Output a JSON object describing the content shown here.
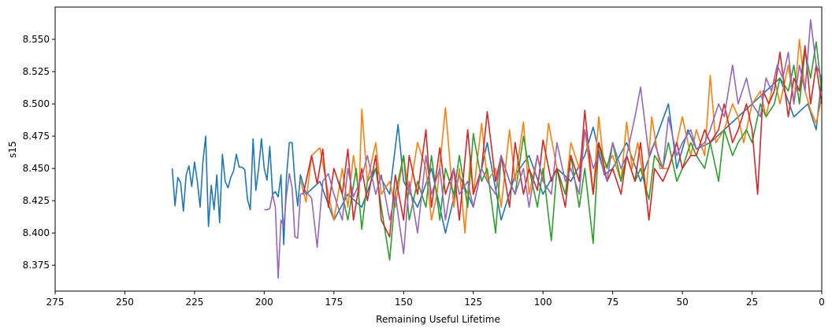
{
  "chart_data": {
    "type": "line",
    "title": "",
    "xlabel": "Remaining Useful Lifetime",
    "ylabel": "s15",
    "xlim": [
      275,
      0
    ],
    "ylim": [
      8.355,
      8.575
    ],
    "x_inverted": true,
    "grid": false,
    "legend": "none",
    "xticks": [
      275,
      250,
      225,
      200,
      175,
      150,
      125,
      100,
      75,
      50,
      25,
      0
    ],
    "xtick_labels": [
      "275",
      "250",
      "225",
      "200",
      "175",
      "150",
      "125",
      "100",
      "75",
      "50",
      "25",
      "0"
    ],
    "yticks": [
      8.375,
      8.4,
      8.425,
      8.45,
      8.475,
      8.5,
      8.525,
      8.55
    ],
    "ytick_labels": [
      "8.375",
      "8.400",
      "8.425",
      "8.450",
      "8.475",
      "8.500",
      "8.525",
      "8.550"
    ],
    "series": [
      {
        "color": "#1f77b4",
        "x": [
          233,
          232,
          231,
          230,
          229,
          228,
          227,
          226,
          225,
          224,
          223,
          222,
          221,
          220,
          219,
          218,
          217,
          216,
          215,
          214,
          213,
          212,
          211,
          210,
          209,
          208,
          207,
          206,
          205,
          204,
          203,
          202,
          201,
          200,
          199,
          198,
          197,
          196,
          195,
          194,
          193,
          192,
          191,
          190,
          189,
          188,
          187,
          185,
          180,
          175,
          170,
          165,
          160,
          155,
          152,
          150,
          145,
          140,
          135,
          130,
          125,
          120,
          115,
          110,
          105,
          100,
          95,
          90,
          85,
          82,
          78,
          75,
          70,
          65,
          60,
          55,
          52,
          48,
          45,
          40,
          35,
          30,
          25,
          20,
          15,
          10,
          5,
          2,
          0
        ],
        "y": [
          8.45,
          8.421,
          8.443,
          8.439,
          8.417,
          8.445,
          8.452,
          8.436,
          8.455,
          8.44,
          8.42,
          8.455,
          8.475,
          8.405,
          8.437,
          8.418,
          8.445,
          8.408,
          8.461,
          8.44,
          8.435,
          8.443,
          8.448,
          8.461,
          8.451,
          8.451,
          8.449,
          8.426,
          8.418,
          8.473,
          8.433,
          8.45,
          8.473,
          8.45,
          8.441,
          8.467,
          8.43,
          8.432,
          8.428,
          8.445,
          8.391,
          8.444,
          8.47,
          8.47,
          8.441,
          8.421,
          8.445,
          8.43,
          8.44,
          8.41,
          8.43,
          8.42,
          8.45,
          8.43,
          8.484,
          8.44,
          8.42,
          8.45,
          8.4,
          8.445,
          8.42,
          8.47,
          8.41,
          8.445,
          8.46,
          8.43,
          8.45,
          8.44,
          8.46,
          8.482,
          8.445,
          8.45,
          8.47,
          8.44,
          8.47,
          8.5,
          8.45,
          8.48,
          8.465,
          8.47,
          8.48,
          8.49,
          8.5,
          8.51,
          8.52,
          8.49,
          8.5,
          8.48,
          8.52
        ]
      },
      {
        "color": "#ff7f0e",
        "x": [
          187,
          185,
          183,
          180,
          177,
          175,
          172,
          170,
          168,
          166,
          165,
          163,
          160,
          158,
          155,
          153,
          150,
          148,
          145,
          142,
          140,
          138,
          135,
          132,
          130,
          128,
          126,
          125,
          122,
          120,
          117,
          115,
          112,
          110,
          107,
          105,
          102,
          100,
          98,
          95,
          92,
          90,
          87,
          85,
          82,
          80,
          78,
          75,
          72,
          70,
          68,
          66,
          63,
          61,
          58,
          55,
          52,
          50,
          47,
          45,
          42,
          40,
          38,
          35,
          32,
          30,
          28,
          25,
          22,
          20,
          17,
          15,
          12,
          10,
          8,
          6,
          4,
          2,
          0
        ],
        "y": [
          8.441,
          8.424,
          8.46,
          8.466,
          8.43,
          8.41,
          8.45,
          8.42,
          8.46,
          8.43,
          8.496,
          8.44,
          8.47,
          8.43,
          8.44,
          8.42,
          8.46,
          8.43,
          8.47,
          8.45,
          8.41,
          8.43,
          8.497,
          8.42,
          8.45,
          8.4,
          8.46,
          8.43,
          8.485,
          8.44,
          8.45,
          8.42,
          8.48,
          8.44,
          8.486,
          8.43,
          8.46,
          8.44,
          8.485,
          8.45,
          8.43,
          8.47,
          8.45,
          8.48,
          8.43,
          8.49,
          8.45,
          8.46,
          8.44,
          8.486,
          8.45,
          8.47,
          8.43,
          8.49,
          8.45,
          8.45,
          8.47,
          8.49,
          8.46,
          8.48,
          8.46,
          8.522,
          8.47,
          8.48,
          8.5,
          8.49,
          8.47,
          8.5,
          8.51,
          8.49,
          8.52,
          8.5,
          8.53,
          8.5,
          8.55,
          8.51,
          8.495,
          8.485,
          8.505
        ]
      },
      {
        "color": "#2ca02c",
        "x": [
          173,
          170,
          167,
          165,
          163,
          160,
          158,
          155,
          153,
          150,
          148,
          145,
          142,
          140,
          137,
          135,
          132,
          130,
          127,
          125,
          122,
          120,
          117,
          115,
          112,
          110,
          107,
          105,
          102,
          100,
          97,
          95,
          92,
          90,
          87,
          85,
          82,
          80,
          77,
          75,
          72,
          70,
          67,
          65,
          62,
          60,
          57,
          55,
          52,
          50,
          47,
          45,
          42,
          40,
          37,
          35,
          32,
          30,
          27,
          25,
          22,
          20,
          17,
          15,
          12,
          10,
          8,
          6,
          4,
          2,
          0
        ],
        "y": [
          8.44,
          8.41,
          8.45,
          8.403,
          8.44,
          8.45,
          8.42,
          8.379,
          8.43,
          8.46,
          8.41,
          8.44,
          8.42,
          8.46,
          8.41,
          8.45,
          8.43,
          8.46,
          8.42,
          8.477,
          8.44,
          8.45,
          8.4,
          8.46,
          8.44,
          8.43,
          8.475,
          8.45,
          8.42,
          8.45,
          8.394,
          8.45,
          8.43,
          8.46,
          8.42,
          8.45,
          8.392,
          8.47,
          8.45,
          8.47,
          8.44,
          8.46,
          8.44,
          8.45,
          8.426,
          8.46,
          8.45,
          8.47,
          8.44,
          8.45,
          8.47,
          8.46,
          8.45,
          8.47,
          8.44,
          8.48,
          8.46,
          8.47,
          8.48,
          8.47,
          8.5,
          8.49,
          8.5,
          8.52,
          8.51,
          8.53,
          8.5,
          8.541,
          8.52,
          8.548,
          8.51
        ]
      },
      {
        "color": "#d62728",
        "x": [
          186,
          183,
          181,
          179,
          177,
          175,
          172,
          170,
          168,
          165,
          163,
          160,
          158,
          155,
          153,
          150,
          148,
          145,
          142,
          140,
          137,
          135,
          132,
          130,
          127,
          125,
          122,
          120,
          117,
          115,
          112,
          110,
          107,
          105,
          102,
          100,
          97,
          95,
          92,
          90,
          87,
          85,
          82,
          80,
          77,
          75,
          72,
          70,
          67,
          65,
          62,
          60,
          57,
          55,
          52,
          50,
          47,
          45,
          42,
          40,
          37,
          35,
          32,
          30,
          27,
          25,
          23,
          21,
          19,
          17,
          15,
          12,
          10,
          8,
          6,
          4,
          2,
          0
        ],
        "y": [
          8.43,
          8.46,
          8.438,
          8.465,
          8.42,
          8.45,
          8.43,
          8.465,
          8.41,
          8.45,
          8.425,
          8.46,
          8.41,
          8.397,
          8.445,
          8.41,
          8.46,
          8.43,
          8.48,
          8.42,
          8.466,
          8.43,
          8.45,
          8.41,
          8.48,
          8.43,
          8.45,
          8.494,
          8.44,
          8.46,
          8.42,
          8.47,
          8.43,
          8.45,
          8.433,
          8.472,
          8.44,
          8.45,
          8.42,
          8.46,
          8.44,
          8.495,
          8.43,
          8.47,
          8.44,
          8.45,
          8.43,
          8.46,
          8.44,
          8.47,
          8.41,
          8.45,
          8.44,
          8.45,
          8.47,
          8.45,
          8.46,
          8.46,
          8.48,
          8.47,
          8.48,
          8.5,
          8.47,
          8.48,
          8.5,
          8.48,
          8.43,
          8.51,
          8.5,
          8.51,
          8.54,
          8.49,
          8.52,
          8.51,
          8.545,
          8.5,
          8.53,
          8.5
        ]
      },
      {
        "color": "#9467bd",
        "x": [
          200,
          199,
          198,
          197,
          196,
          195,
          194,
          193,
          192,
          191,
          190,
          189,
          188,
          187,
          185,
          183,
          181,
          179,
          177,
          175,
          172,
          170,
          168,
          165,
          163,
          160,
          158,
          155,
          153,
          150,
          148,
          145,
          142,
          140,
          137,
          135,
          132,
          130,
          127,
          125,
          122,
          120,
          117,
          115,
          112,
          110,
          107,
          105,
          102,
          100,
          97,
          95,
          92,
          90,
          87,
          85,
          82,
          80,
          77,
          75,
          72,
          70,
          67,
          65,
          62,
          60,
          57,
          55,
          52,
          50,
          47,
          45,
          42,
          40,
          37,
          35,
          32,
          30,
          27,
          25,
          22,
          20,
          18,
          16,
          14,
          12,
          10,
          8,
          6,
          4,
          2,
          0
        ],
        "y": [
          8.418,
          8.418,
          8.419,
          8.43,
          8.42,
          8.365,
          8.41,
          8.405,
          8.43,
          8.446,
          8.435,
          8.397,
          8.396,
          8.43,
          8.432,
          8.427,
          8.389,
          8.44,
          8.446,
          8.43,
          8.41,
          8.45,
          8.428,
          8.443,
          8.46,
          8.43,
          8.445,
          8.41,
          8.43,
          8.384,
          8.44,
          8.4,
          8.46,
          8.43,
          8.45,
          8.41,
          8.45,
          8.43,
          8.44,
          8.42,
          8.45,
          8.44,
          8.43,
          8.46,
          8.44,
          8.43,
          8.45,
          8.42,
          8.46,
          8.44,
          8.43,
          8.47,
          8.44,
          8.45,
          8.43,
          8.48,
          8.45,
          8.46,
          8.44,
          8.47,
          8.45,
          8.46,
          8.49,
          8.513,
          8.46,
          8.47,
          8.45,
          8.49,
          8.46,
          8.47,
          8.48,
          8.465,
          8.47,
          8.48,
          8.5,
          8.49,
          8.53,
          8.5,
          8.52,
          8.5,
          8.49,
          8.52,
          8.51,
          8.53,
          8.52,
          8.54,
          8.5,
          8.53,
          8.51,
          8.565,
          8.53,
          8.52
        ]
      }
    ]
  }
}
